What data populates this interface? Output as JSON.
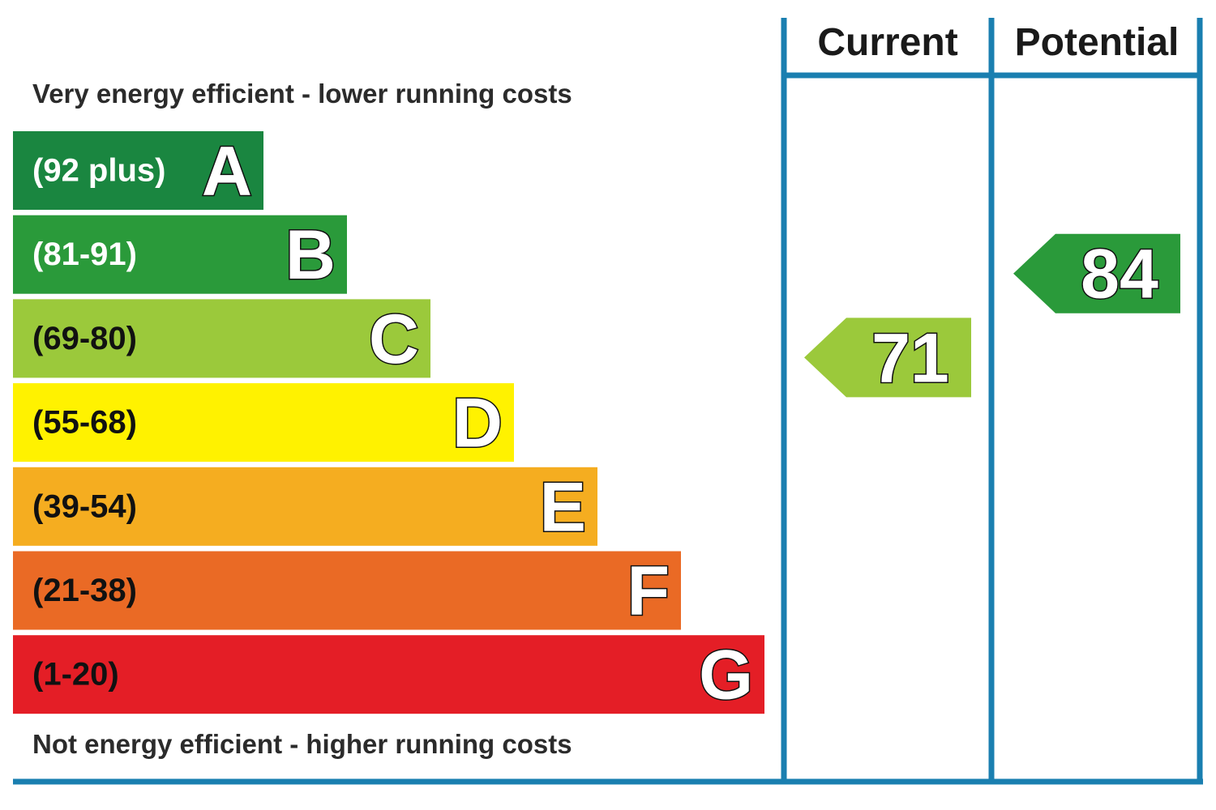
{
  "chart_data": {
    "type": "bar",
    "top_caption": "Very energy efficient - lower running costs",
    "bottom_caption": "Not energy efficient - higher running costs",
    "column_headers": [
      "Current",
      "Potential"
    ],
    "bands": [
      {
        "letter": "A",
        "range": "(92 plus)",
        "min": 92,
        "max": null,
        "color": "#1a8640",
        "range_text_color": "#ffffff"
      },
      {
        "letter": "B",
        "range": "(81-91)",
        "min": 81,
        "max": 91,
        "color": "#2a9a3a",
        "range_text_color": "#ffffff"
      },
      {
        "letter": "C",
        "range": "(69-80)",
        "min": 69,
        "max": 80,
        "color": "#9bc93b",
        "range_text_color": "#111111"
      },
      {
        "letter": "D",
        "range": "(55-68)",
        "min": 55,
        "max": 68,
        "color": "#fff200",
        "range_text_color": "#111111"
      },
      {
        "letter": "E",
        "range": "(39-54)",
        "min": 39,
        "max": 54,
        "color": "#f5ad20",
        "range_text_color": "#111111"
      },
      {
        "letter": "F",
        "range": "(21-38)",
        "min": 21,
        "max": 38,
        "color": "#ea6a25",
        "range_text_color": "#111111"
      },
      {
        "letter": "G",
        "range": "(1-20)",
        "min": 1,
        "max": 20,
        "color": "#e41e26",
        "range_text_color": "#111111"
      }
    ],
    "ratings": [
      {
        "column": "Current",
        "value": 71,
        "band": "C",
        "color": "#9bc93b"
      },
      {
        "column": "Potential",
        "value": 84,
        "band": "B",
        "color": "#2a9a3a"
      }
    ],
    "frame_color": "#1a7fb0"
  }
}
